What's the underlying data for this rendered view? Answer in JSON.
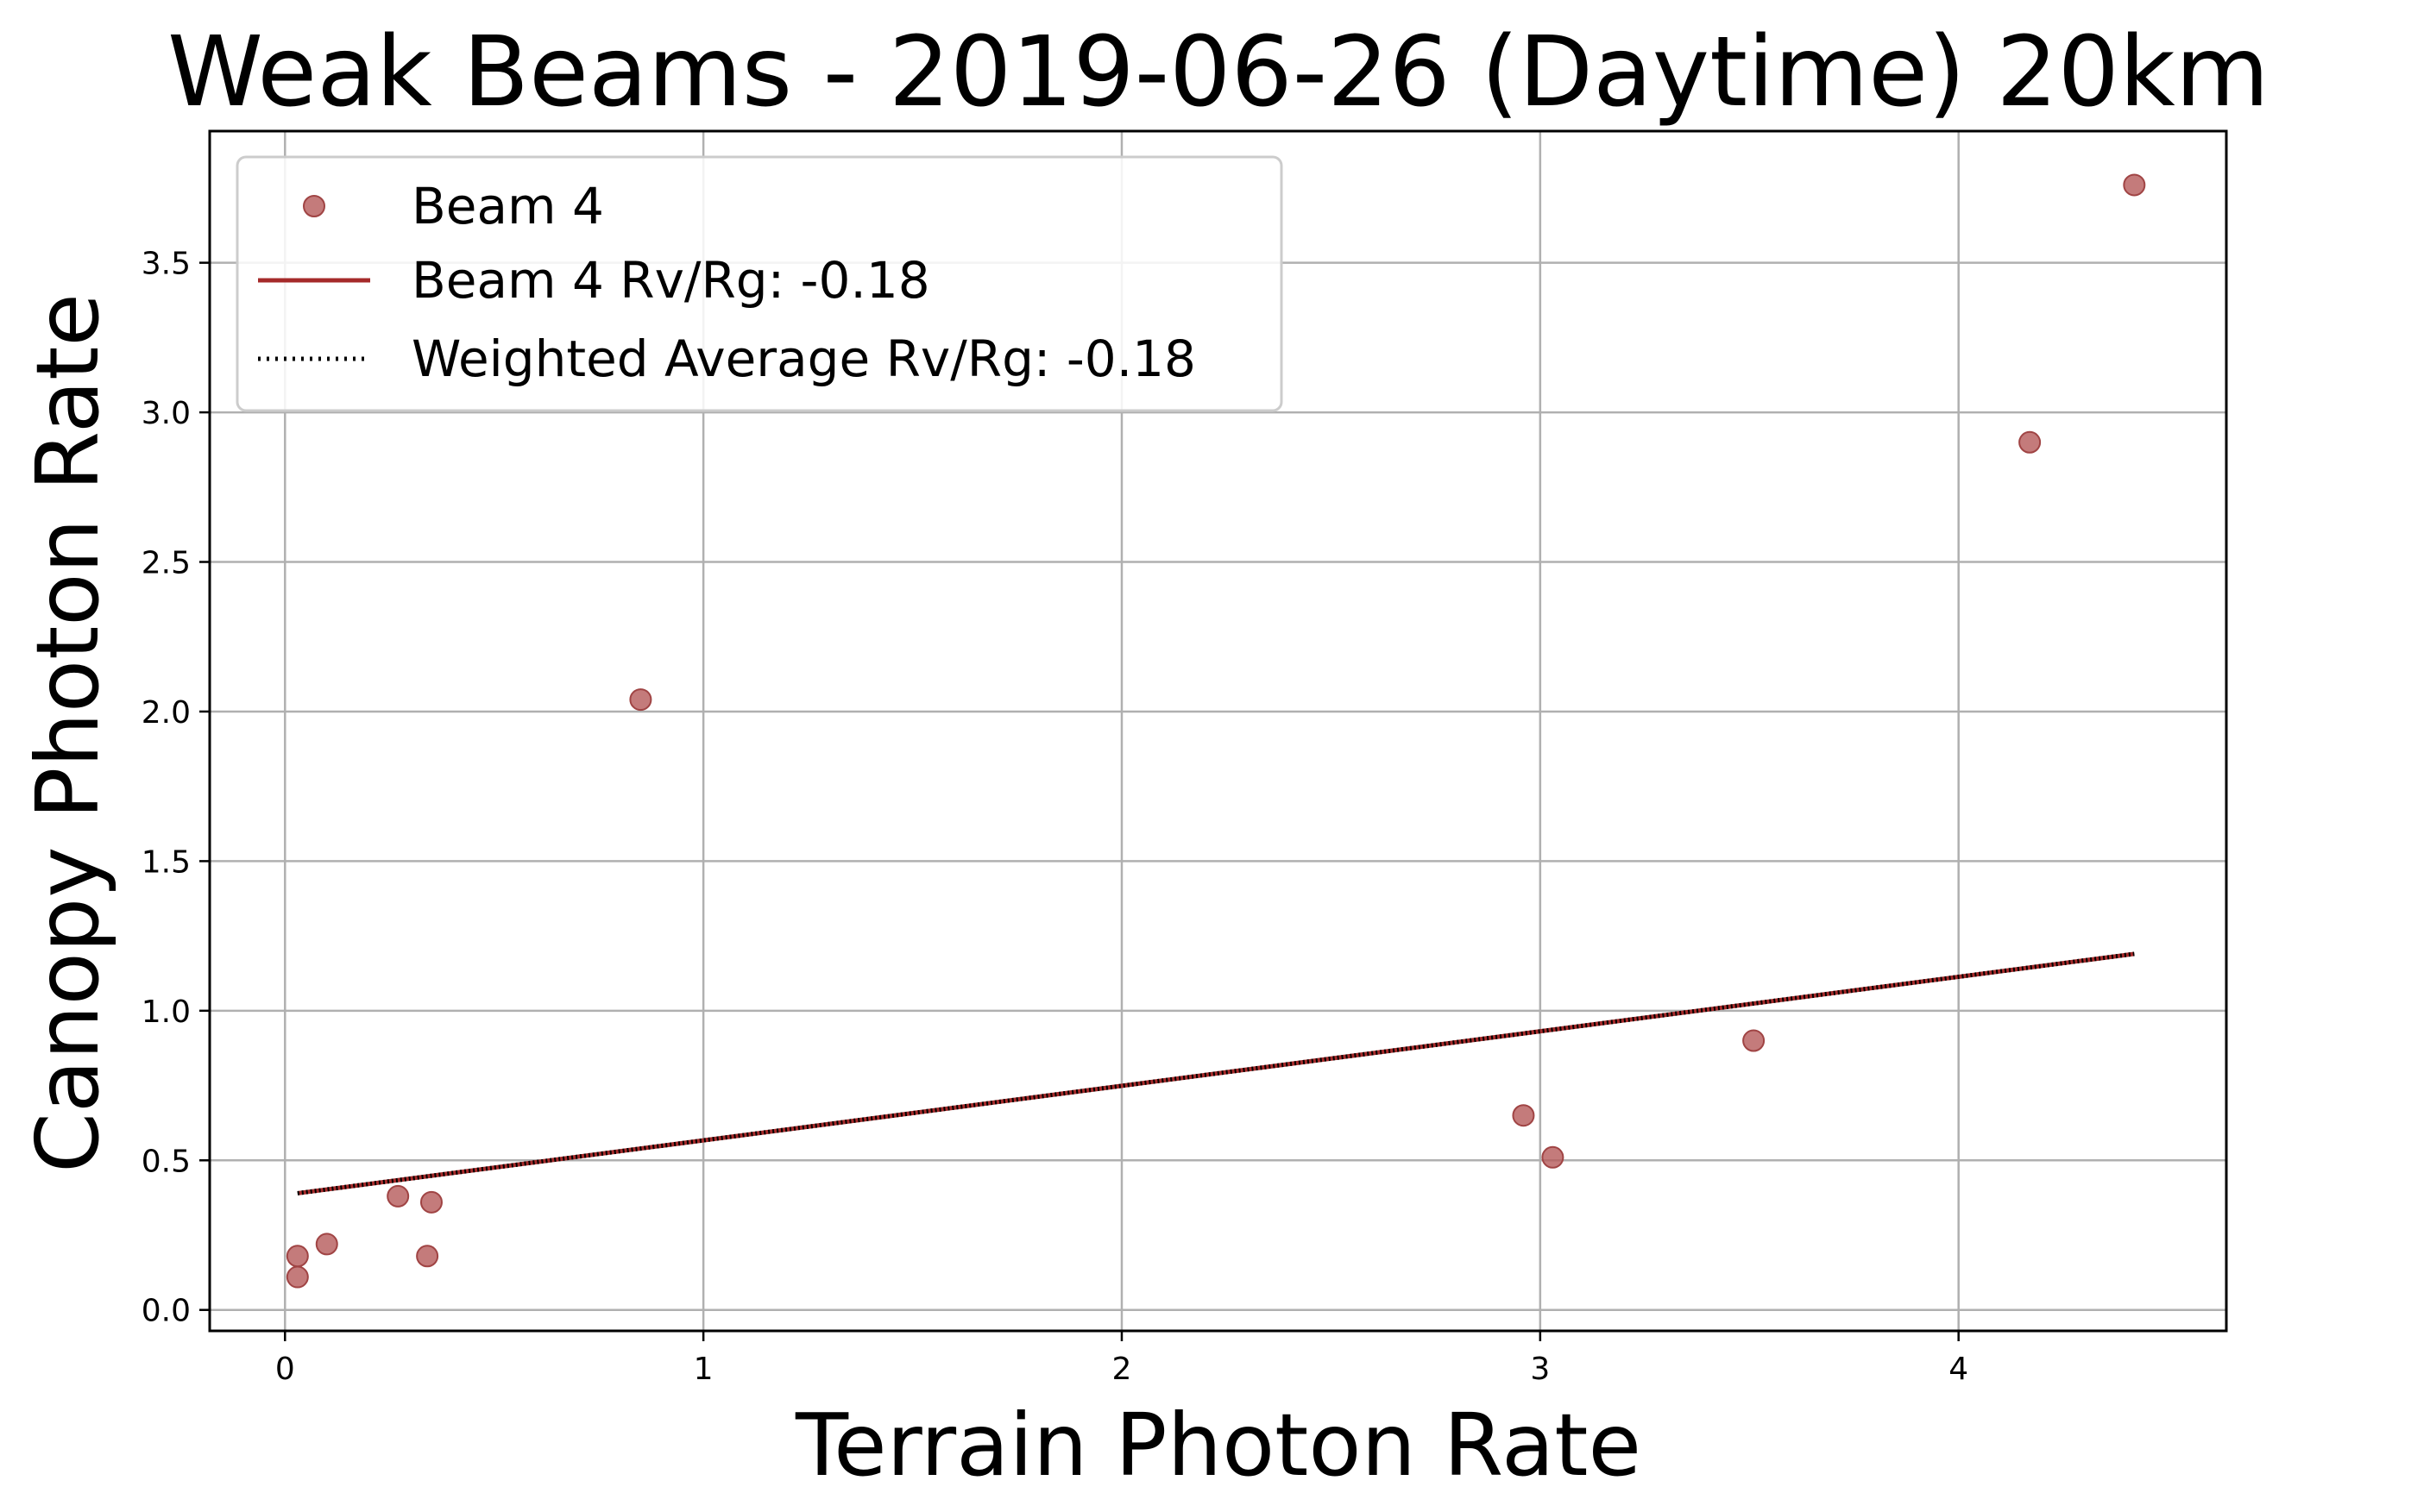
{
  "chart_data": {
    "type": "scatter",
    "title": "Weak Beams - 2019-06-26 (Daytime) 20km",
    "xlabel": "Terrain Photon Rate",
    "ylabel": "Canopy Photon Rate",
    "xlim": [
      -0.18,
      4.64
    ],
    "ylim": [
      -0.07,
      3.94
    ],
    "x_ticks": [
      0,
      1,
      2,
      3,
      4
    ],
    "x_tick_labels": [
      "0",
      "1",
      "2",
      "3",
      "4"
    ],
    "y_ticks": [
      0.0,
      0.5,
      1.0,
      1.5,
      2.0,
      2.5,
      3.0,
      3.5
    ],
    "y_tick_labels": [
      "0.0",
      "0.5",
      "1.0",
      "1.5",
      "2.0",
      "2.5",
      "3.0",
      "3.5"
    ],
    "grid": true,
    "legend_position": "upper-left",
    "series": [
      {
        "name": "Beam 4",
        "kind": "scatter",
        "color": "#b55a5a",
        "points": [
          {
            "x": 0.03,
            "y": 0.18
          },
          {
            "x": 0.03,
            "y": 0.11
          },
          {
            "x": 0.1,
            "y": 0.22
          },
          {
            "x": 0.27,
            "y": 0.38
          },
          {
            "x": 0.34,
            "y": 0.18
          },
          {
            "x": 0.35,
            "y": 0.36
          },
          {
            "x": 0.85,
            "y": 2.04
          },
          {
            "x": 2.96,
            "y": 0.65
          },
          {
            "x": 3.03,
            "y": 0.51
          },
          {
            "x": 3.51,
            "y": 0.9
          },
          {
            "x": 4.17,
            "y": 2.9
          },
          {
            "x": 4.42,
            "y": 3.76
          }
        ]
      },
      {
        "name": "Beam 4 Rv/Rg: -0.18",
        "kind": "line",
        "style": "solid",
        "color": "#a52a2a",
        "points": [
          {
            "x": 0.03,
            "y": 0.39
          },
          {
            "x": 4.42,
            "y": 1.19
          }
        ]
      },
      {
        "name": "Weighted Average Rv/Rg: -0.18",
        "kind": "line",
        "style": "dotted",
        "color": "#000000",
        "points": [
          {
            "x": 0.03,
            "y": 0.39
          },
          {
            "x": 4.42,
            "y": 1.19
          }
        ]
      }
    ]
  }
}
